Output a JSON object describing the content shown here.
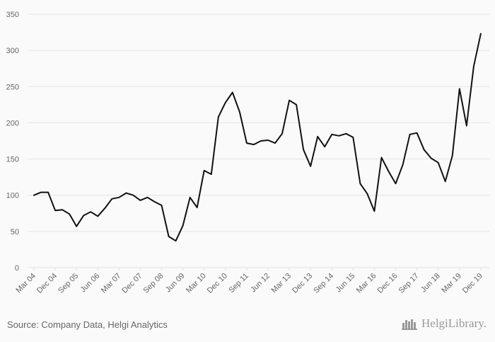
{
  "chart_data": {
    "type": "line",
    "title": "",
    "xlabel": "",
    "ylabel": "",
    "ylim": [
      0,
      350
    ],
    "yticks": [
      0,
      50,
      100,
      150,
      200,
      250,
      300,
      350
    ],
    "grid": "horizontal",
    "x_tick_labels": [
      "Mar 04",
      "Dec 04",
      "Sep 05",
      "Jun 06",
      "Mar 07",
      "Dec 07",
      "Sep 08",
      "Jun 09",
      "Mar 10",
      "Dec 10",
      "Sep 11",
      "Jun 12",
      "Mar 13",
      "Dec 13",
      "Sep 14",
      "Jun 15",
      "Mar 16",
      "Dec 16",
      "Sep 17",
      "Jun 18",
      "Mar 19",
      "Dec 19"
    ],
    "line_color": "#111111",
    "values": [
      100,
      104,
      104,
      79,
      80,
      74,
      57,
      72,
      77,
      71,
      82,
      95,
      97,
      103,
      100,
      93,
      97,
      91,
      86,
      43,
      37,
      58,
      97,
      83,
      134,
      129,
      208,
      228,
      242,
      215,
      172,
      170,
      175,
      176,
      172,
      185,
      231,
      225,
      163,
      140,
      181,
      167,
      184,
      182,
      185,
      180,
      116,
      102,
      78,
      152,
      133,
      116,
      142,
      184,
      186,
      163,
      151,
      145,
      119,
      155,
      247,
      196,
      278,
      323
    ]
  },
  "footer": {
    "source": "Source: Company Data, Helgi Analytics",
    "logo_text": "HelgiLibrary."
  },
  "colors": {
    "background": "#fafafa",
    "grid": "#e3e3e3",
    "axis_text": "#666666",
    "logo": "#9a9a9a"
  }
}
